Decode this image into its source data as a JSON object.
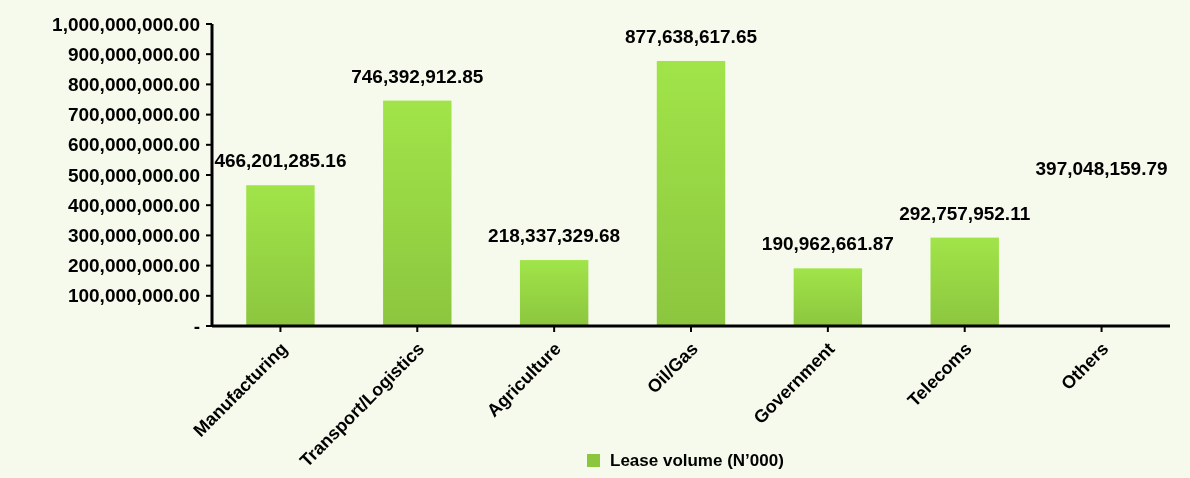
{
  "chart_data": {
    "type": "bar",
    "categories": [
      "Manufacturing",
      "Transport/Logistics",
      "Agriculture",
      "Oil/Gas",
      "Government",
      "Telecoms",
      "Others"
    ],
    "series": [
      {
        "name": "Lease volume (N’000)",
        "color": "#8cc63f",
        "values": [
          466201285.16,
          746392912.85,
          218337329.68,
          877638617.65,
          190962661.87,
          292757952.11,
          null
        ],
        "value_labels": [
          "466,201,285.16",
          "746,392,912.85",
          "218,337,329.68",
          "877,638,617.65",
          "190,962,661.87",
          "292,757,952.11",
          "397,048,159.79"
        ]
      }
    ],
    "ylim": [
      0,
      1000000000
    ],
    "yticks": [
      {
        "value": 0,
        "label": "-"
      },
      {
        "value": 100000000,
        "label": "100,000,000.00"
      },
      {
        "value": 200000000,
        "label": "200,000,000.00"
      },
      {
        "value": 300000000,
        "label": "300,000,000.00"
      },
      {
        "value": 400000000,
        "label": "400,000,000.00"
      },
      {
        "value": 500000000,
        "label": "500,000,000.00"
      },
      {
        "value": 600000000,
        "label": "600,000,000.00"
      },
      {
        "value": 700000000,
        "label": "700,000,000.00"
      },
      {
        "value": 800000000,
        "label": "800,000,000.00"
      },
      {
        "value": 900000000,
        "label": "900,000,000.00"
      },
      {
        "value": 1000000000,
        "label": "1,000,000,000.00"
      }
    ],
    "grid": false,
    "legend": "bottom"
  }
}
